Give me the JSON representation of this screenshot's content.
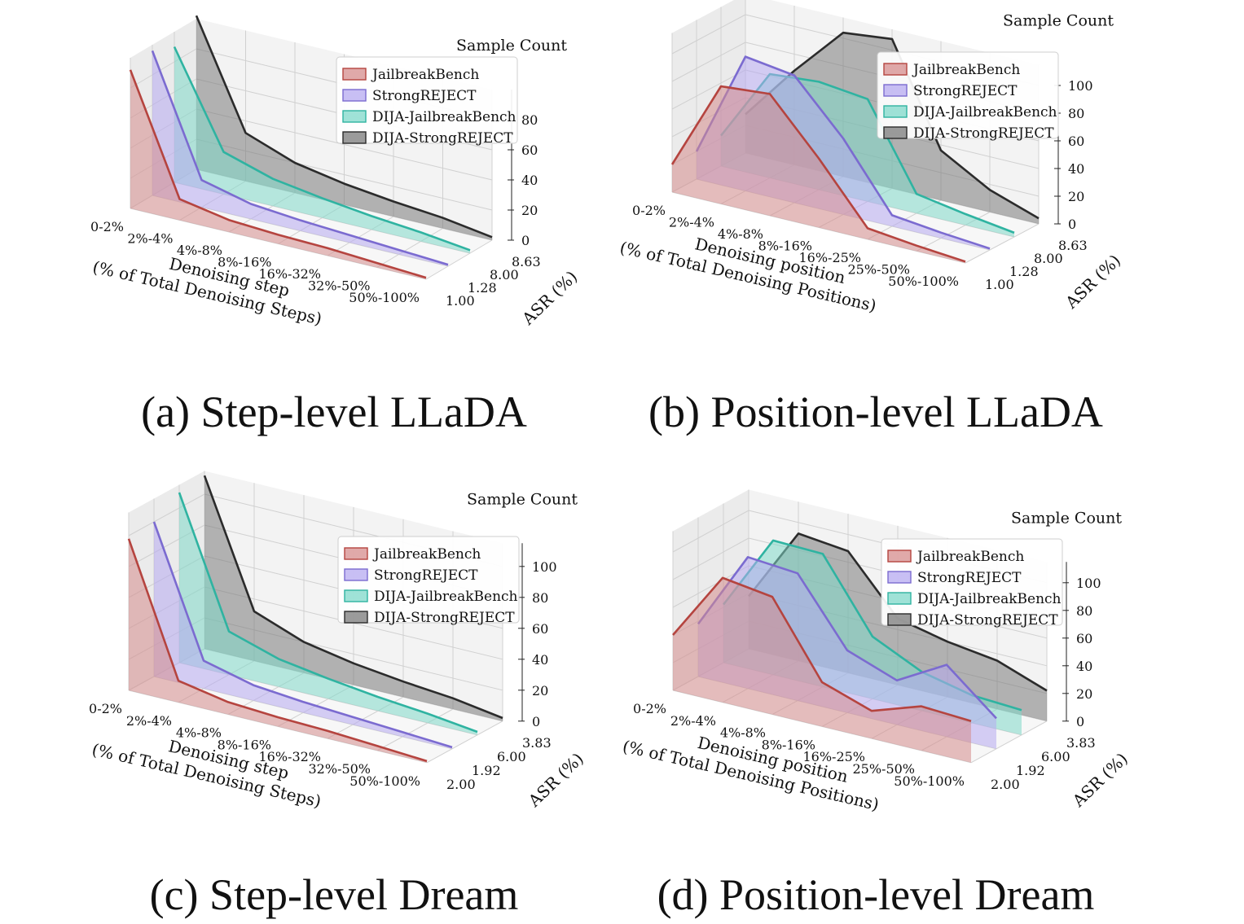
{
  "series_names": [
    "JailbreakBench",
    "StrongREJECT",
    "DIJA-JailbreakBench",
    "DIJA-StrongREJECT"
  ],
  "series_colors": {
    "JailbreakBench": "#b5443f",
    "StrongREJECT": "#7b6bd0",
    "DIJA-JailbreakBench": "#2fb3a1",
    "DIJA-StrongREJECT": "#2b2b2b"
  },
  "series_fills": {
    "JailbreakBench": "#d68c8c",
    "StrongREJECT": "#b6aaf0",
    "DIJA-JailbreakBench": "#7fd8c9",
    "DIJA-StrongREJECT": "#7a7a7a"
  },
  "chart_data": [
    {
      "id": "a",
      "type": "area",
      "caption": "(a) Step-level LLaDA",
      "zlabel": "Sample Count",
      "xlabel": "Denoising step\n(% of Total Denoising Steps)",
      "ylabel": "ASR (%)",
      "categories": [
        "0-2%",
        "2%-4%",
        "4%-8%",
        "8%-16%",
        "16%-32%",
        "32%-50%",
        "50%-100%"
      ],
      "asr": [
        "1.00",
        "1.28",
        "8.00",
        "8.63"
      ],
      "zticks": [
        "0",
        "20",
        "40",
        "60",
        "80"
      ],
      "zlim": [
        0,
        100
      ],
      "legend": "top-right",
      "series": [
        {
          "name": "JailbreakBench",
          "asr": "1.00",
          "values": [
            92,
            14,
            8,
            6,
            5,
            3,
            1
          ]
        },
        {
          "name": "StrongREJECT",
          "asr": "1.28",
          "values": [
            96,
            18,
            10,
            7,
            5,
            3,
            1
          ]
        },
        {
          "name": "DIJA-JailbreakBench",
          "asr": "8.00",
          "values": [
            90,
            28,
            18,
            13,
            9,
            6,
            2
          ]
        },
        {
          "name": "DIJA-StrongREJECT",
          "asr": "8.63",
          "values": [
            102,
            32,
            20,
            14,
            10,
            7,
            2
          ]
        }
      ]
    },
    {
      "id": "b",
      "type": "area",
      "caption": "(b) Position-level LLaDA",
      "zlabel": "Sample Count",
      "xlabel": "Denoising position\n(% of Total Denoising Positions)",
      "ylabel": "ASR (%)",
      "categories": [
        "0-2%",
        "2%-4%",
        "4%-8%",
        "8%-16%",
        "16%-25%",
        "25%-50%",
        "50%-100%"
      ],
      "asr": [
        "1.00",
        "1.28",
        "8.00",
        "8.63"
      ],
      "zticks": [
        "0",
        "20",
        "40",
        "60",
        "80",
        "100"
      ],
      "zlim": [
        0,
        115
      ],
      "legend": "top-right",
      "series": [
        {
          "name": "JailbreakBench",
          "asr": "1.00",
          "values": [
            20,
            85,
            88,
            50,
            8,
            4,
            1
          ]
        },
        {
          "name": "StrongREJECT",
          "asr": "1.28",
          "values": [
            20,
            97,
            92,
            55,
            8,
            4,
            1
          ]
        },
        {
          "name": "DIJA-JailbreakBench",
          "asr": "8.00",
          "values": [
            22,
            75,
            78,
            74,
            14,
            8,
            3
          ]
        },
        {
          "name": "DIJA-StrongREJECT",
          "asr": "8.63",
          "values": [
            28,
            68,
            104,
            108,
            36,
            16,
            4
          ]
        }
      ]
    },
    {
      "id": "c",
      "type": "area",
      "caption": "(c) Step-level Dream",
      "zlabel": "Sample Count",
      "xlabel": "Denoising step\n(% of Total Denoising Steps)",
      "ylabel": "ASR (%)",
      "categories": [
        "0-2%",
        "2%-4%",
        "4%-8%",
        "8%-16%",
        "16%-32%",
        "32%-50%",
        "50%-100%"
      ],
      "asr": [
        "2.00",
        "1.92",
        "6.00",
        "3.83"
      ],
      "zticks": [
        "0",
        "20",
        "40",
        "60",
        "80",
        "100"
      ],
      "zlim": [
        0,
        115
      ],
      "legend": "top-right",
      "series": [
        {
          "name": "JailbreakBench",
          "asr": "2.00",
          "values": [
            98,
            14,
            8,
            6,
            5,
            3,
            1
          ]
        },
        {
          "name": "StrongREJECT",
          "asr": "1.92",
          "values": [
            100,
            18,
            10,
            7,
            5,
            3,
            1
          ]
        },
        {
          "name": "DIJA-JailbreakBench",
          "asr": "6.00",
          "values": [
            110,
            28,
            18,
            13,
            9,
            6,
            2
          ]
        },
        {
          "name": "DIJA-StrongREJECT",
          "asr": "3.83",
          "values": [
            112,
            32,
            20,
            14,
            10,
            7,
            2
          ]
        }
      ]
    },
    {
      "id": "d",
      "type": "area",
      "caption": "(d) Position-level Dream",
      "zlabel": "Sample Count",
      "xlabel": "Denoising position\n(% of Total Denoising Positions)",
      "ylabel": "ASR (%)",
      "categories": [
        "0-2%",
        "2%-4%",
        "4%-8%",
        "8%-16%",
        "16%-25%",
        "25%-50%",
        "50%-100%"
      ],
      "asr": [
        "2.00",
        "1.92",
        "6.00",
        "3.83"
      ],
      "zticks": [
        "0",
        "20",
        "40",
        "60",
        "80",
        "100"
      ],
      "zlim": [
        0,
        115
      ],
      "legend": "top-right",
      "series": [
        {
          "name": "JailbreakBench",
          "asr": "2.00",
          "values": [
            40,
            90,
            85,
            32,
            20,
            32,
            30
          ]
        },
        {
          "name": "StrongREJECT",
          "asr": "1.92",
          "values": [
            38,
            95,
            92,
            45,
            32,
            52,
            22
          ]
        },
        {
          "name": "DIJA-JailbreakBench",
          "asr": "6.00",
          "values": [
            42,
            97,
            96,
            45,
            28,
            20,
            18
          ]
        },
        {
          "name": "DIJA-StrongREJECT",
          "asr": "3.83",
          "values": [
            38,
            92,
            88,
            48,
            40,
            35,
            22
          ]
        }
      ]
    }
  ]
}
